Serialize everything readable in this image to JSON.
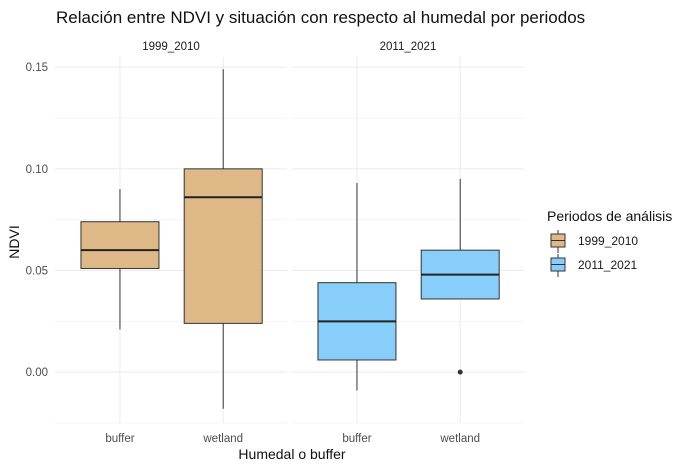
{
  "chart_data": {
    "type": "box",
    "title": "Relación entre NDVI y situación con respecto al humedal por periodos",
    "xlabel": "Humedal o buffer",
    "ylabel": "NDVI",
    "ylim": [
      -0.025,
      0.155
    ],
    "yticks": [
      0.0,
      0.05,
      0.1,
      0.15
    ],
    "ytick_labels": [
      "0.00",
      "0.05",
      "0.10",
      "0.15"
    ],
    "categories": [
      "buffer",
      "wetland"
    ],
    "grid": true,
    "legend": {
      "title": "Periodos de análisis",
      "position": "right",
      "entries": [
        {
          "label": "1999_2010",
          "color": "#deb887"
        },
        {
          "label": "2011_2021",
          "color": "#87cefa"
        }
      ]
    },
    "panels": [
      {
        "label": "1999_2010",
        "color": "#deb887",
        "boxes": [
          {
            "category": "buffer",
            "min": 0.021,
            "q1": 0.051,
            "median": 0.06,
            "q3": 0.074,
            "max": 0.09,
            "outliers": []
          },
          {
            "category": "wetland",
            "min": -0.018,
            "q1": 0.024,
            "median": 0.086,
            "q3": 0.1,
            "max": 0.149,
            "outliers": []
          }
        ]
      },
      {
        "label": "2011_2021",
        "color": "#87cefa",
        "boxes": [
          {
            "category": "buffer",
            "min": -0.009,
            "q1": 0.006,
            "median": 0.025,
            "q3": 0.044,
            "max": 0.093,
            "outliers": []
          },
          {
            "category": "wetland",
            "min": 0.036,
            "q1": 0.036,
            "median": 0.048,
            "q3": 0.06,
            "max": 0.095,
            "outliers": [
              0.0
            ]
          }
        ]
      }
    ]
  }
}
